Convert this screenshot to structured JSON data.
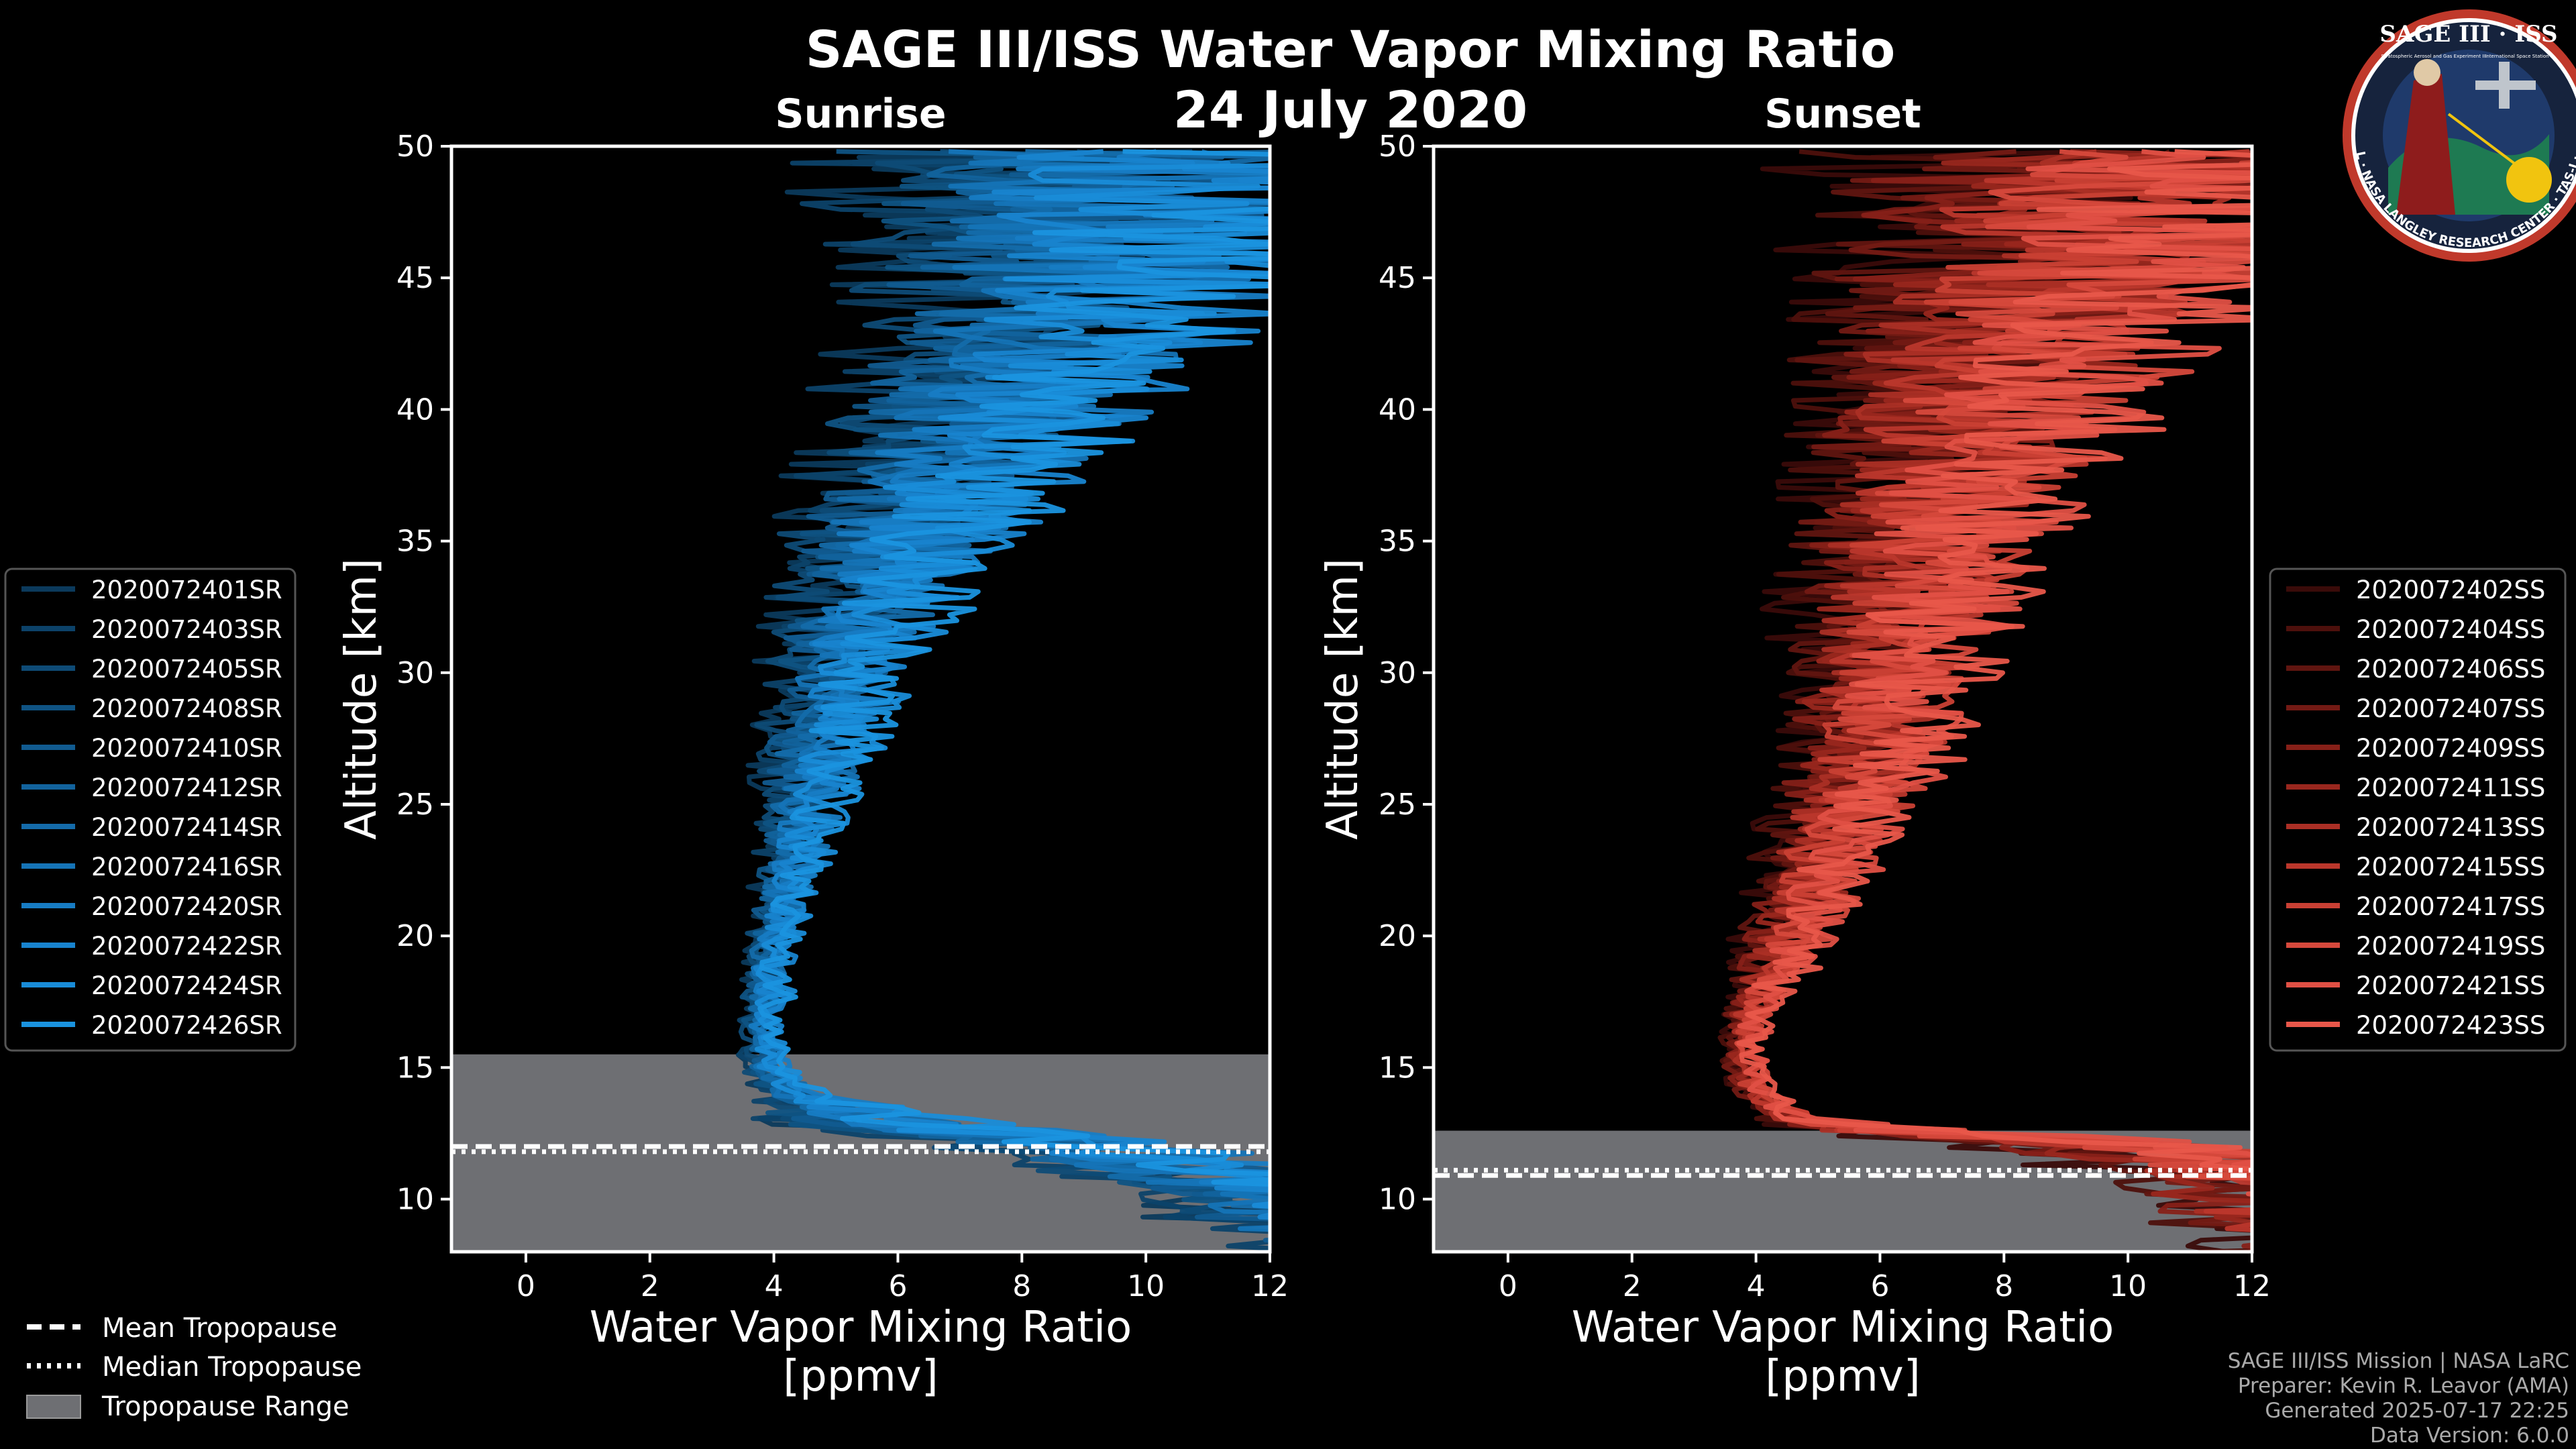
{
  "title": "SAGE III/ISS Water Vapor Mixing Ratio",
  "date": "24 July 2020",
  "colors": {
    "sunrise": "#1a8fd6",
    "sunset": "#e8574a",
    "tropopause_band": "#6e6f73",
    "background": "#000000"
  },
  "logo": {
    "top_text": "SAGE III · ISS",
    "subtitle_left": "Stratospheric Aerosol and Gas Experiment III",
    "subtitle_right": "International Space Station",
    "ring_text": "BALL · NASA LANGLEY RESEARCH CENTER · TAS-I · ESA"
  },
  "footer": {
    "line1": "SAGE III/ISS Mission | NASA LaRC",
    "line2": "Preparer: Kevin R. Leavor (AMA)",
    "line3": "Generated 2025-07-17 22:25",
    "line4": "Data Version: 6.0.0"
  },
  "tropopause_legend": [
    {
      "label": "Mean Tropopause",
      "style": "dashed"
    },
    {
      "label": "Median Tropopause",
      "style": "dotted"
    },
    {
      "label": "Tropopause Range",
      "style": "patch"
    }
  ],
  "chart_data": [
    {
      "type": "line",
      "panel": "sunrise",
      "title": "Sunrise",
      "xlabel": "Water Vapor Mixing Ratio\n[ppmv]",
      "ylabel": "Altitude [km]",
      "xlim": [
        -1.2,
        12
      ],
      "ylim": [
        8,
        50
      ],
      "xticks": [
        0,
        2,
        4,
        6,
        8,
        10,
        12
      ],
      "yticks": [
        10,
        15,
        20,
        25,
        30,
        35,
        40,
        45,
        50
      ],
      "tropopause": {
        "mean": 12.0,
        "median": 11.8,
        "range": [
          8.0,
          15.5
        ]
      },
      "base_color": "#1a8fd6",
      "profile_template": {
        "altitude": [
          8,
          9,
          10,
          11,
          12,
          12.5,
          13,
          14,
          15,
          16,
          17,
          18,
          19,
          20,
          21,
          22,
          23,
          24,
          25,
          26,
          27,
          28,
          29,
          30,
          31,
          32,
          33,
          34,
          35,
          36,
          37,
          38,
          39,
          40,
          41,
          42,
          43,
          44,
          45,
          46,
          47,
          48,
          49,
          50
        ],
        "mean_h2o": [
          14,
          13,
          12.5,
          11,
          9,
          7,
          5.5,
          4.3,
          3.9,
          3.8,
          3.8,
          3.9,
          3.9,
          4.0,
          4.1,
          4.2,
          4.3,
          4.4,
          4.5,
          4.6,
          4.7,
          4.8,
          5.0,
          5.1,
          5.2,
          5.4,
          5.6,
          5.8,
          6.0,
          6.3,
          6.6,
          6.9,
          7.2,
          7.5,
          7.9,
          8.2,
          8.5,
          8.8,
          9.0,
          9.2,
          9.4,
          9.5,
          9.6,
          9.7
        ],
        "spread": [
          3,
          3,
          3,
          3,
          3,
          2.5,
          2,
          0.6,
          0.5,
          0.4,
          0.4,
          0.5,
          0.5,
          0.5,
          0.6,
          0.6,
          0.7,
          0.8,
          0.9,
          1.0,
          1.1,
          1.2,
          1.3,
          1.4,
          1.5,
          1.6,
          1.8,
          2.0,
          2.2,
          2.4,
          2.6,
          2.8,
          3.0,
          3.2,
          3.4,
          3.6,
          3.8,
          4.0,
          4.3,
          4.6,
          4.9,
          5.2,
          5.5,
          5.8
        ]
      },
      "series": [
        {
          "name": "2020072401SR",
          "color": "#0b3a5c"
        },
        {
          "name": "2020072403SR",
          "color": "#0c4269"
        },
        {
          "name": "2020072405SR",
          "color": "#0e4b76"
        },
        {
          "name": "2020072408SR",
          "color": "#0f5383"
        },
        {
          "name": "2020072410SR",
          "color": "#115b90"
        },
        {
          "name": "2020072412SR",
          "color": "#12639d"
        },
        {
          "name": "2020072414SR",
          "color": "#146baa"
        },
        {
          "name": "2020072416SR",
          "color": "#1574b7"
        },
        {
          "name": "2020072420SR",
          "color": "#177cc4"
        },
        {
          "name": "2020072422SR",
          "color": "#1884cf"
        },
        {
          "name": "2020072424SR",
          "color": "#198cd8"
        },
        {
          "name": "2020072426SR",
          "color": "#1a93df"
        }
      ]
    },
    {
      "type": "line",
      "panel": "sunset",
      "title": "Sunset",
      "xlabel": "Water Vapor Mixing Ratio\n[ppmv]",
      "ylabel": "Altitude [km]",
      "xlim": [
        -1.2,
        12
      ],
      "ylim": [
        8,
        50
      ],
      "xticks": [
        0,
        2,
        4,
        6,
        8,
        10,
        12
      ],
      "yticks": [
        10,
        15,
        20,
        25,
        30,
        35,
        40,
        45,
        50
      ],
      "tropopause": {
        "mean": 10.9,
        "median": 11.1,
        "range": [
          8.0,
          12.6
        ]
      },
      "base_color": "#e8574a",
      "profile_template": {
        "altitude": [
          8,
          9,
          10,
          11,
          12,
          12.5,
          13,
          14,
          15,
          16,
          17,
          18,
          19,
          20,
          21,
          22,
          23,
          24,
          25,
          26,
          27,
          28,
          29,
          30,
          31,
          32,
          33,
          34,
          35,
          36,
          37,
          38,
          39,
          40,
          41,
          42,
          43,
          44,
          45,
          46,
          47,
          48,
          49,
          50
        ],
        "mean_h2o": [
          14,
          13,
          12.5,
          12,
          10,
          6.5,
          4.6,
          4.0,
          3.8,
          3.8,
          3.9,
          4.1,
          4.3,
          4.5,
          4.7,
          4.9,
          5.0,
          5.2,
          5.4,
          5.6,
          5.8,
          5.9,
          6.0,
          6.1,
          6.2,
          6.3,
          6.4,
          6.5,
          6.6,
          6.8,
          7.0,
          7.2,
          7.4,
          7.6,
          7.8,
          8.0,
          8.3,
          8.6,
          8.9,
          9.2,
          9.5,
          9.8,
          10.0,
          10.2
        ],
        "spread": [
          3,
          3,
          3,
          3,
          3,
          2,
          0.6,
          0.4,
          0.4,
          0.4,
          0.5,
          0.6,
          0.8,
          0.9,
          1.0,
          1.1,
          1.2,
          1.3,
          1.4,
          1.5,
          1.6,
          1.7,
          1.8,
          1.9,
          2.0,
          2.1,
          2.2,
          2.3,
          2.4,
          2.5,
          2.7,
          2.9,
          3.1,
          3.3,
          3.5,
          3.7,
          3.9,
          4.1,
          4.4,
          4.7,
          5.0,
          5.3,
          5.6,
          5.9
        ]
      },
      "series": [
        {
          "name": "2020072402SS",
          "color": "#3a0b09"
        },
        {
          "name": "2020072404SS",
          "color": "#4d100c"
        },
        {
          "name": "2020072406SS",
          "color": "#601510"
        },
        {
          "name": "2020072407SS",
          "color": "#731a14"
        },
        {
          "name": "2020072409SS",
          "color": "#862018"
        },
        {
          "name": "2020072411SS",
          "color": "#99271e"
        },
        {
          "name": "2020072413SS",
          "color": "#ab2f25"
        },
        {
          "name": "2020072415SS",
          "color": "#bb372c"
        },
        {
          "name": "2020072417SS",
          "color": "#c94034"
        },
        {
          "name": "2020072419SS",
          "color": "#d6493c"
        },
        {
          "name": "2020072421SS",
          "color": "#e05044"
        },
        {
          "name": "2020072423SS",
          "color": "#e8574a"
        }
      ]
    }
  ]
}
